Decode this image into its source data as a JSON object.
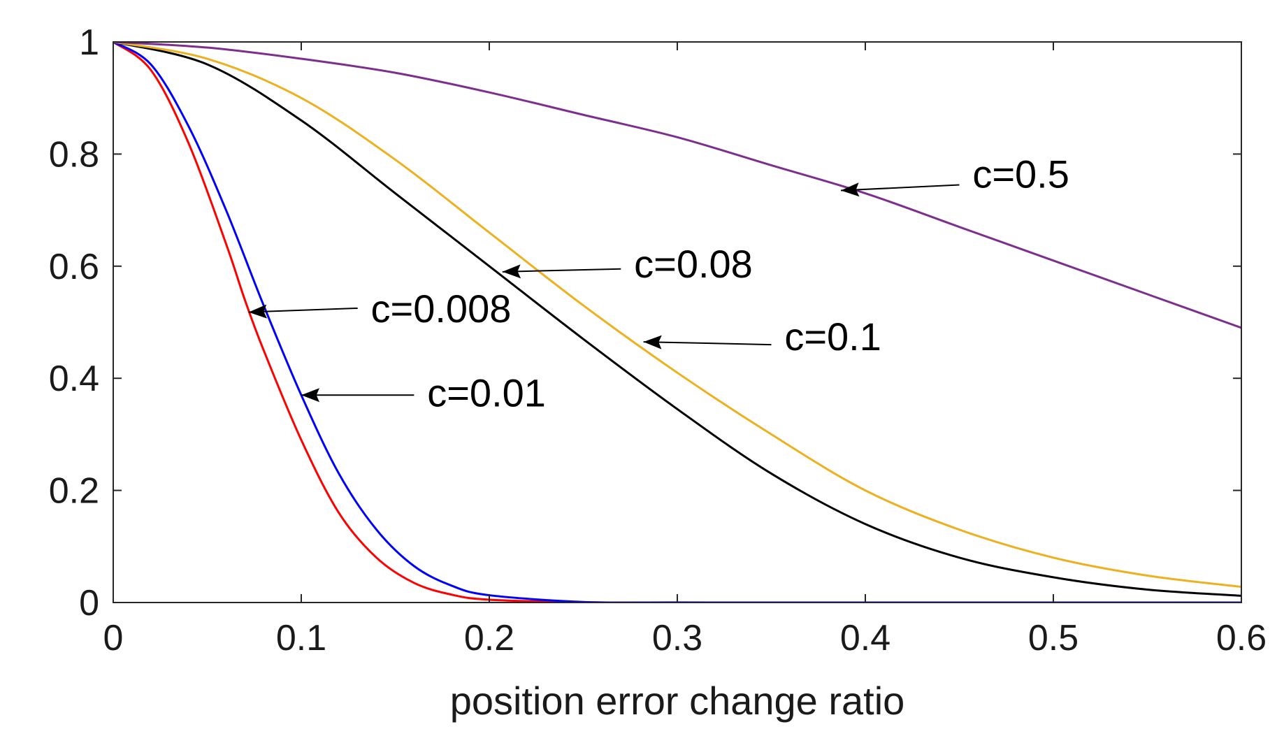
{
  "chart_data": {
    "type": "line",
    "title": "",
    "xlabel": "position error change ratio",
    "ylabel": "",
    "xlim": [
      0,
      0.6
    ],
    "ylim": [
      0,
      1
    ],
    "x_ticks": [
      "0",
      "0.1",
      "0.2",
      "0.3",
      "0.4",
      "0.5",
      "0.6"
    ],
    "y_ticks": [
      "0",
      "0.2",
      "0.4",
      "0.6",
      "0.8",
      "1"
    ],
    "grid": false,
    "series": [
      {
        "name": "c=0.008",
        "color": "#ff0000",
        "x": [
          0,
          0.02,
          0.04,
          0.06,
          0.07,
          0.08,
          0.1,
          0.12,
          0.14,
          0.16,
          0.18,
          0.2,
          0.25,
          0.3,
          0.4,
          0.5,
          0.6
        ],
        "y": [
          1,
          0.95,
          0.82,
          0.64,
          0.54,
          0.45,
          0.29,
          0.16,
          0.08,
          0.035,
          0.014,
          0.005,
          0.0004,
          0,
          0,
          0,
          0
        ]
      },
      {
        "name": "c=0.01",
        "color": "#0000ff",
        "x": [
          0,
          0.02,
          0.04,
          0.06,
          0.08,
          0.1,
          0.12,
          0.14,
          0.16,
          0.18,
          0.2,
          0.25,
          0.3,
          0.4,
          0.5,
          0.6
        ],
        "y": [
          1,
          0.96,
          0.85,
          0.7,
          0.53,
          0.37,
          0.23,
          0.13,
          0.065,
          0.03,
          0.013,
          0.001,
          0.0001,
          0,
          0,
          0
        ]
      },
      {
        "name": "c=0.08",
        "color": "#000000",
        "x": [
          0,
          0.05,
          0.1,
          0.15,
          0.2,
          0.25,
          0.3,
          0.35,
          0.4,
          0.45,
          0.5,
          0.55,
          0.6
        ],
        "y": [
          1,
          0.96,
          0.86,
          0.73,
          0.6,
          0.47,
          0.345,
          0.23,
          0.14,
          0.08,
          0.045,
          0.023,
          0.012
        ]
      },
      {
        "name": "c=0.1",
        "color": "#edb120",
        "x": [
          0,
          0.05,
          0.1,
          0.15,
          0.2,
          0.25,
          0.3,
          0.35,
          0.4,
          0.45,
          0.5,
          0.55,
          0.6
        ],
        "y": [
          1,
          0.97,
          0.9,
          0.79,
          0.66,
          0.53,
          0.41,
          0.3,
          0.2,
          0.13,
          0.08,
          0.048,
          0.028
        ]
      },
      {
        "name": "c=0.5",
        "color": "#7e2f8e",
        "x": [
          0,
          0.05,
          0.1,
          0.15,
          0.2,
          0.25,
          0.3,
          0.35,
          0.4,
          0.45,
          0.5,
          0.55,
          0.6
        ],
        "y": [
          1,
          0.99,
          0.97,
          0.945,
          0.91,
          0.87,
          0.83,
          0.78,
          0.73,
          0.67,
          0.61,
          0.55,
          0.49
        ]
      }
    ],
    "annotations": [
      {
        "text": "c=0.5",
        "label_x": 0.457,
        "label_y": 0.74,
        "arrow_from": [
          0.45,
          0.745
        ],
        "arrow_to": [
          0.387,
          0.735
        ]
      },
      {
        "text": "c=0.08",
        "label_x": 0.277,
        "label_y": 0.58,
        "arrow_from": [
          0.27,
          0.595
        ],
        "arrow_to": [
          0.207,
          0.59
        ]
      },
      {
        "text": "c=0.1",
        "label_x": 0.357,
        "label_y": 0.45,
        "arrow_from": [
          0.35,
          0.46
        ],
        "arrow_to": [
          0.282,
          0.465
        ]
      },
      {
        "text": "c=0.008",
        "label_x": 0.137,
        "label_y": 0.5,
        "arrow_from": [
          0.13,
          0.525
        ],
        "arrow_to": [
          0.072,
          0.518
        ]
      },
      {
        "text": "c=0.01",
        "label_x": 0.167,
        "label_y": 0.35,
        "arrow_from": [
          0.16,
          0.37
        ],
        "arrow_to": [
          0.1,
          0.37
        ]
      }
    ]
  }
}
